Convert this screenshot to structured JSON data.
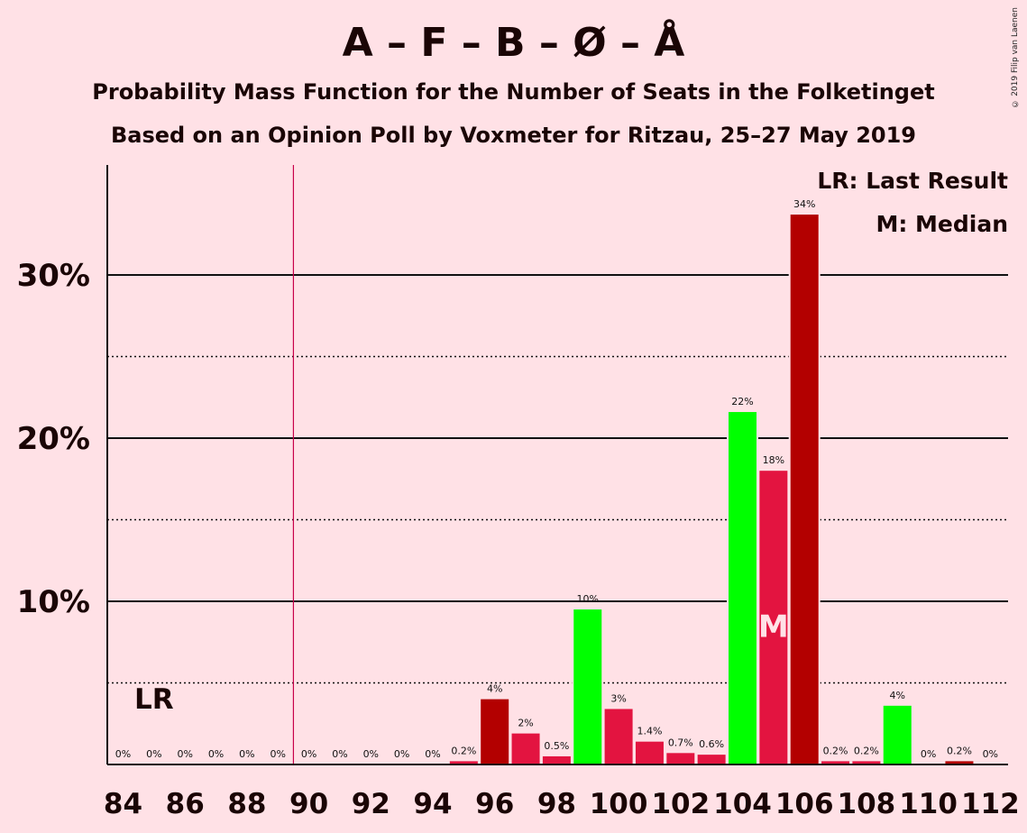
{
  "chart_data": {
    "type": "bar",
    "title": "A – F – B – Ø – Å",
    "subtitle": "Probability Mass Function for the Number of Seats in the Folketinget",
    "subtitle2": "Based on an Opinion Poll by Voxmeter for Ritzau, 25–27 May 2019",
    "copyright": "© 2019 Filip van Laenen",
    "xlabel": "",
    "ylabel": "",
    "ylim": [
      0,
      37
    ],
    "x": [
      84,
      85,
      86,
      87,
      88,
      89,
      90,
      91,
      92,
      93,
      94,
      95,
      96,
      97,
      98,
      99,
      100,
      101,
      102,
      103,
      104,
      105,
      106,
      107,
      108,
      109,
      110,
      111,
      112
    ],
    "values": [
      0,
      0,
      0,
      0,
      0,
      0,
      0,
      0,
      0,
      0,
      0,
      0.2,
      4.0,
      1.9,
      0.5,
      9.5,
      3.4,
      1.4,
      0.7,
      0.6,
      21.6,
      18.0,
      33.7,
      0.2,
      0.2,
      3.6,
      0,
      0.2,
      0
    ],
    "data_labels": [
      "0%",
      "0%",
      "0%",
      "0%",
      "0%",
      "0%",
      "0%",
      "0%",
      "0%",
      "0%",
      "0%",
      "0.2%",
      "4%",
      "2%",
      "0.5%",
      "10%",
      "3%",
      "1.4%",
      "0.7%",
      "0.6%",
      "22%",
      "18%",
      "34%",
      "0.2%",
      "0.2%",
      "4%",
      "0%",
      "0.2%",
      "0%"
    ],
    "bar_colors": [
      "#E31440",
      "#E31440",
      "#B30000",
      "#E3008C",
      "#E31440",
      "#00FF00",
      "#E31440",
      "#B30000",
      "#E31440",
      "#B30000",
      "#00FF00",
      "#E31440",
      "#B30000",
      "#E31440",
      "#E31440",
      "#00FF00",
      "#E31440",
      "#E31440",
      "#E31440",
      "#E31440",
      "#00FF00",
      "#E31440",
      "#B30000",
      "#E31440",
      "#E31440",
      "#00FF00",
      "#E31440",
      "#B30000",
      "#E31440"
    ],
    "x_tick_labels": [
      "84",
      "86",
      "88",
      "90",
      "92",
      "94",
      "96",
      "98",
      "100",
      "102",
      "104",
      "106",
      "108",
      "110",
      "112"
    ],
    "y_ticks": [
      {
        "value": 10,
        "label": "10%"
      },
      {
        "value": 20,
        "label": "20%"
      },
      {
        "value": 30,
        "label": "30%"
      }
    ],
    "dotted_gridlines": [
      5,
      15,
      25
    ],
    "last_result": {
      "seat": 89.5,
      "label": "LR",
      "label_seat": 85
    },
    "median": {
      "seat": 105,
      "label": "M"
    },
    "legend": [
      "LR: Last Result",
      "M: Median"
    ],
    "grid": true
  }
}
